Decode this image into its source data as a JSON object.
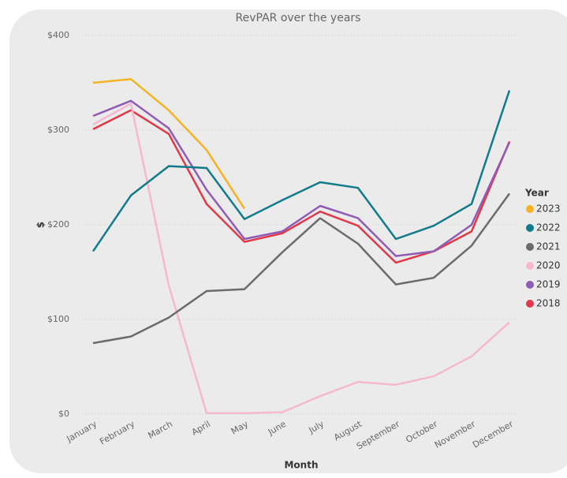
{
  "chart_data": {
    "type": "line",
    "title": "RevPAR over the years",
    "x_label": "Month",
    "y_label": "$",
    "legend_title": "Year",
    "legend": "right",
    "grid": true,
    "categories": [
      "January",
      "February",
      "March",
      "April",
      "May",
      "June",
      "July",
      "August",
      "September",
      "October",
      "November",
      "December"
    ],
    "ylim": [
      0,
      400
    ],
    "yticks": [
      {
        "value": 0,
        "label": "$0"
      },
      {
        "value": 100,
        "label": "$100"
      },
      {
        "value": 200,
        "label": "$200"
      },
      {
        "value": 300,
        "label": "$300"
      },
      {
        "value": 400,
        "label": "$400"
      }
    ],
    "series": [
      {
        "name": "2023",
        "color": "#f5b324",
        "values": [
          350,
          354,
          321,
          279,
          217,
          null,
          null,
          null,
          null,
          null,
          null,
          null
        ]
      },
      {
        "name": "2022",
        "color": "#117a8b",
        "values": [
          172,
          231,
          262,
          260,
          206,
          226,
          245,
          239,
          185,
          199,
          222,
          342
        ]
      },
      {
        "name": "2021",
        "color": "#6b6b6b",
        "values": [
          75,
          82,
          102,
          130,
          132,
          171,
          207,
          180,
          137,
          144,
          178,
          233
        ]
      },
      {
        "name": "2020",
        "color": "#f5b8cf",
        "values": [
          306,
          328,
          136,
          1,
          1,
          2,
          19,
          34,
          31,
          40,
          61,
          97
        ]
      },
      {
        "name": "2019",
        "color": "#8e5bb5",
        "values": [
          315,
          331,
          302,
          237,
          185,
          193,
          220,
          207,
          167,
          172,
          200,
          287
        ]
      },
      {
        "name": "2018",
        "color": "#e0394a",
        "values": [
          301,
          321,
          296,
          222,
          182,
          191,
          214,
          199,
          160,
          172,
          193,
          288
        ]
      }
    ]
  }
}
